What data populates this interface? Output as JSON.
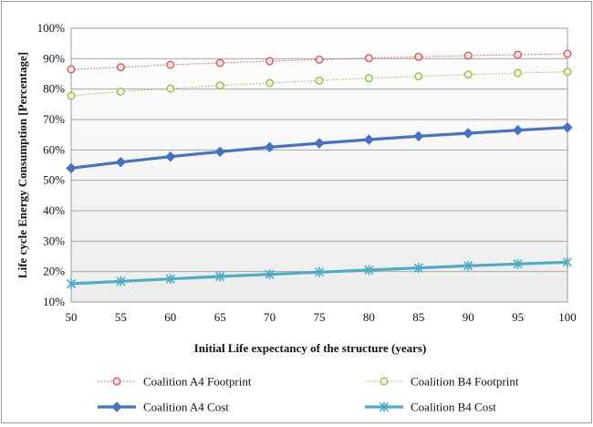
{
  "chart_data": {
    "type": "line",
    "title": "",
    "xlabel": "Initial Life expectancy of the structure (years)",
    "ylabel": "Life cycle Energy Consumption  [Percentage]",
    "x": [
      50,
      55,
      60,
      65,
      70,
      75,
      80,
      85,
      90,
      95,
      100
    ],
    "xlim": [
      50,
      100
    ],
    "ylim": [
      10,
      100
    ],
    "y_ticks": [
      "10%",
      "20%",
      "30%",
      "40%",
      "50%",
      "60%",
      "70%",
      "80%",
      "90%",
      "100%"
    ],
    "x_ticks": [
      "50",
      "55",
      "60",
      "65",
      "70",
      "75",
      "80",
      "85",
      "90",
      "95",
      "100"
    ],
    "grid": "horizontal",
    "legend_position": "bottom",
    "series": [
      {
        "name": "Coalition A4 Footprint",
        "color": "#d9534f",
        "marker": "circle",
        "style": "dotted",
        "values": [
          86.5,
          87.2,
          88.0,
          88.6,
          89.2,
          89.7,
          90.2,
          90.6,
          91.0,
          91.3,
          91.6
        ]
      },
      {
        "name": "Coalition B4 Footprint",
        "color": "#8fbf3f",
        "marker": "circle",
        "style": "dotted",
        "values": [
          77.8,
          79.2,
          80.2,
          81.2,
          82.0,
          82.8,
          83.6,
          84.2,
          84.8,
          85.3,
          85.7
        ]
      },
      {
        "name": "Coalition A4 Cost",
        "color": "#4472c4",
        "marker": "diamond",
        "style": "solid",
        "values": [
          54.0,
          56.0,
          57.8,
          59.4,
          60.9,
          62.2,
          63.4,
          64.5,
          65.5,
          66.5,
          67.4
        ]
      },
      {
        "name": "Coalition B4 Cost",
        "color": "#4bacc6",
        "marker": "star",
        "style": "solid",
        "values": [
          16.0,
          16.8,
          17.6,
          18.4,
          19.1,
          19.8,
          20.5,
          21.2,
          21.9,
          22.5,
          23.1
        ]
      }
    ]
  }
}
